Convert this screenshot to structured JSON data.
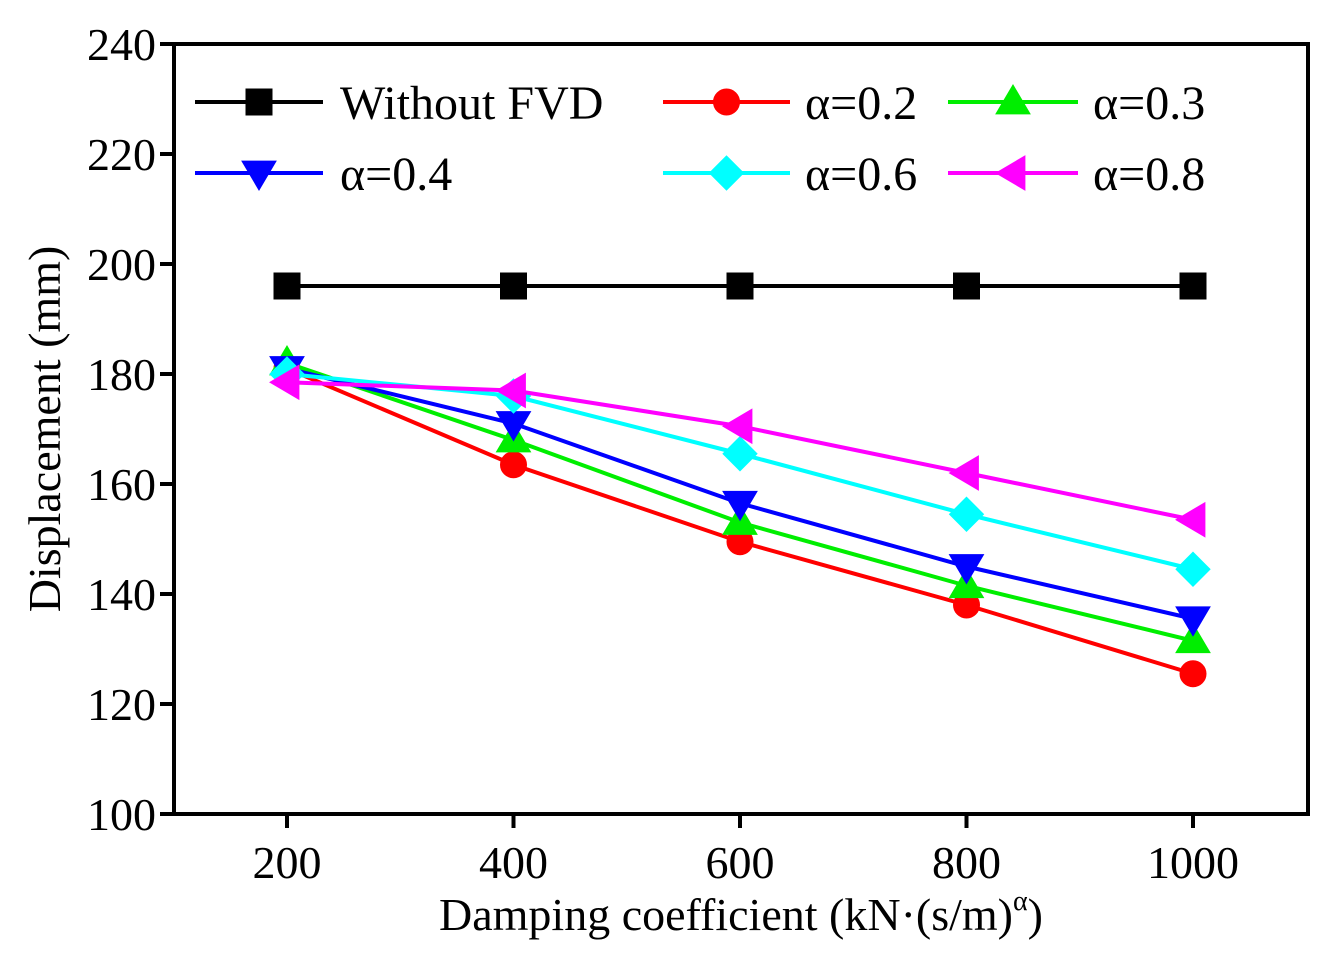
{
  "chart_data": {
    "type": "line",
    "title": "",
    "xlabel_main": "Damping coefficient (kN·(s/m)",
    "xlabel_sup": "α",
    "xlabel_end": ")",
    "ylabel": "Displacement (mm)",
    "x": [
      200,
      400,
      600,
      800,
      1000
    ],
    "xlim": [
      150,
      1150
    ],
    "ylim": [
      100,
      240
    ],
    "xticks": [
      200,
      400,
      600,
      800,
      1000
    ],
    "yticks": [
      100,
      120,
      140,
      160,
      180,
      200,
      220,
      240
    ],
    "grid": false,
    "legend_placement": "top, inside, 2 rows x 3 columns",
    "series": [
      {
        "name": "Without FVD",
        "color": "#000000",
        "marker": "square",
        "values": [
          196,
          196,
          196,
          196,
          196
        ]
      },
      {
        "name": "α=0.2",
        "color": "#ff0000",
        "marker": "circle",
        "values": [
          181,
          163.5,
          149.5,
          138,
          125.5
        ]
      },
      {
        "name": "α=0.3",
        "color": "#00ee00",
        "marker": "triangle-up",
        "values": [
          182,
          168,
          153,
          141.5,
          131.5
        ]
      },
      {
        "name": "α=0.4",
        "color": "#0000ff",
        "marker": "triangle-down",
        "values": [
          181,
          171,
          156.5,
          145,
          135.5
        ]
      },
      {
        "name": "α=0.6",
        "color": "#00ffff",
        "marker": "diamond",
        "values": [
          180,
          176,
          165.5,
          154.5,
          144.5
        ]
      },
      {
        "name": "α=0.8",
        "color": "#ff00ff",
        "marker": "triangle-left",
        "values": [
          178.5,
          177,
          170.5,
          162,
          153.5
        ]
      }
    ]
  }
}
